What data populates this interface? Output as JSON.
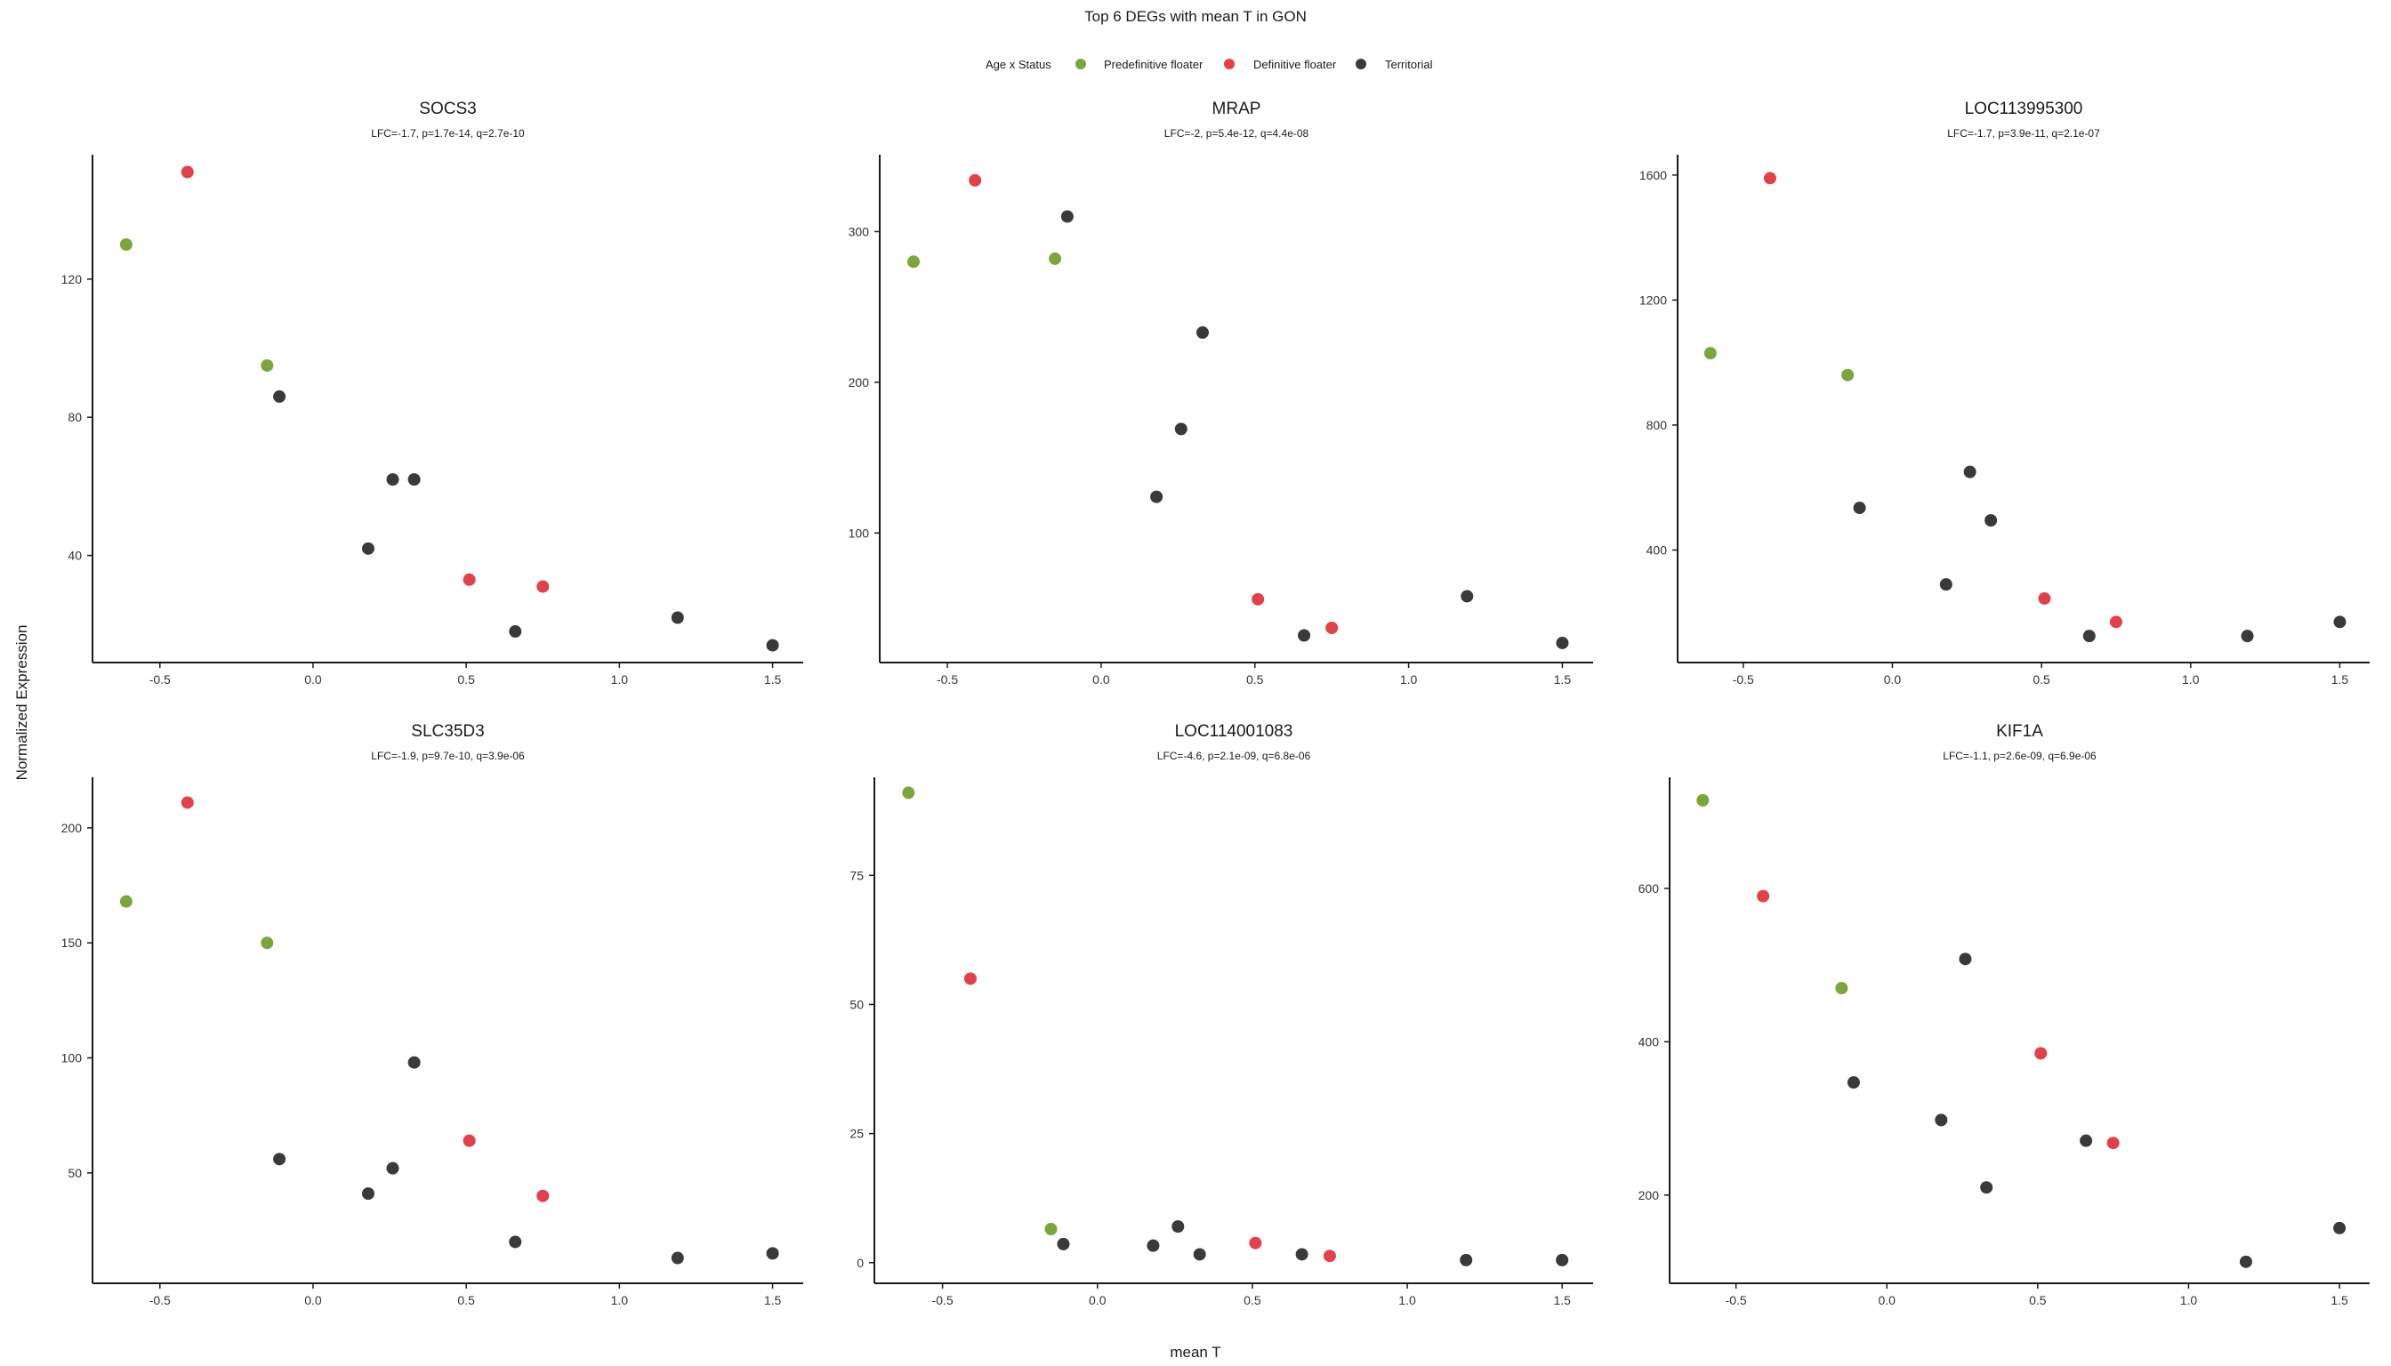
{
  "figure": {
    "title": "Top 6 DEGs with mean T in GON",
    "xlabel": "mean T",
    "ylabel": "Normalized Expression"
  },
  "legend": {
    "title": "Age x Status",
    "position": "top-center",
    "items": [
      {
        "name": "Predefinitive floater",
        "color": "#7CA63B"
      },
      {
        "name": "Definitive floater",
        "color": "#E0414A"
      },
      {
        "name": "Territorial",
        "color": "#3A3A3A"
      }
    ]
  },
  "chart_data": [
    {
      "type": "scatter",
      "title": "SOCS3",
      "subtitle": "LFC=-1.7, p=1.7e-14, q=2.7e-10",
      "xlim": [
        -0.72,
        1.6
      ],
      "ylim": [
        9,
        156
      ],
      "xticks": [
        -0.5,
        0.0,
        0.5,
        1.0,
        1.5
      ],
      "xtick_labels": [
        "-0.5",
        "0.0",
        "0.5",
        "1.0",
        "1.5"
      ],
      "yticks": [
        40,
        80,
        120
      ],
      "ytick_labels": [
        "40",
        "80",
        "120"
      ],
      "points": [
        {
          "x": -0.61,
          "y": 130,
          "status": "Predefinitive floater"
        },
        {
          "x": -0.15,
          "y": 95,
          "status": "Predefinitive floater"
        },
        {
          "x": -0.41,
          "y": 151,
          "status": "Definitive floater"
        },
        {
          "x": 0.51,
          "y": 33,
          "status": "Definitive floater"
        },
        {
          "x": 0.75,
          "y": 31,
          "status": "Definitive floater"
        },
        {
          "x": -0.11,
          "y": 86,
          "status": "Territorial"
        },
        {
          "x": 0.26,
          "y": 62,
          "status": "Territorial"
        },
        {
          "x": 0.33,
          "y": 62,
          "status": "Territorial"
        },
        {
          "x": 0.18,
          "y": 42,
          "status": "Territorial"
        },
        {
          "x": 0.66,
          "y": 18,
          "status": "Territorial"
        },
        {
          "x": 1.19,
          "y": 22,
          "status": "Territorial"
        },
        {
          "x": 1.5,
          "y": 14,
          "status": "Territorial"
        }
      ]
    },
    {
      "type": "scatter",
      "title": "MRAP",
      "subtitle": "LFC=-2, p=5.4e-12, q=4.4e-08",
      "xlim": [
        -0.72,
        1.6
      ],
      "ylim": [
        14,
        351
      ],
      "xticks": [
        -0.5,
        0.0,
        0.5,
        1.0,
        1.5
      ],
      "xtick_labels": [
        "-0.5",
        "0.0",
        "0.5",
        "1.0",
        "1.5"
      ],
      "yticks": [
        100,
        200,
        300
      ],
      "ytick_labels": [
        "100",
        "200",
        "300"
      ],
      "points": [
        {
          "x": -0.61,
          "y": 280,
          "status": "Predefinitive floater"
        },
        {
          "x": -0.15,
          "y": 282,
          "status": "Predefinitive floater"
        },
        {
          "x": -0.41,
          "y": 334,
          "status": "Definitive floater"
        },
        {
          "x": 0.51,
          "y": 56,
          "status": "Definitive floater"
        },
        {
          "x": 0.75,
          "y": 37,
          "status": "Definitive floater"
        },
        {
          "x": -0.11,
          "y": 310,
          "status": "Territorial"
        },
        {
          "x": 0.33,
          "y": 233,
          "status": "Territorial"
        },
        {
          "x": 0.26,
          "y": 169,
          "status": "Territorial"
        },
        {
          "x": 0.18,
          "y": 124,
          "status": "Territorial"
        },
        {
          "x": 0.66,
          "y": 32,
          "status": "Territorial"
        },
        {
          "x": 1.19,
          "y": 58,
          "status": "Territorial"
        },
        {
          "x": 1.5,
          "y": 27,
          "status": "Territorial"
        }
      ]
    },
    {
      "type": "scatter",
      "title": "LOC113995300",
      "subtitle": "LFC=-1.7, p=3.9e-11, q=2.1e-07",
      "xlim": [
        -0.72,
        1.6
      ],
      "ylim": [
        40,
        1665
      ],
      "xticks": [
        -0.5,
        0.0,
        0.5,
        1.0,
        1.5
      ],
      "xtick_labels": [
        "-0.5",
        "0.0",
        "0.5",
        "1.0",
        "1.5"
      ],
      "yticks": [
        400,
        800,
        1200,
        1600
      ],
      "ytick_labels": [
        "400",
        "800",
        "1200",
        "1600"
      ],
      "points": [
        {
          "x": -0.61,
          "y": 1030,
          "status": "Predefinitive floater"
        },
        {
          "x": -0.15,
          "y": 960,
          "status": "Predefinitive floater"
        },
        {
          "x": -0.41,
          "y": 1590,
          "status": "Definitive floater"
        },
        {
          "x": 0.51,
          "y": 245,
          "status": "Definitive floater"
        },
        {
          "x": 0.75,
          "y": 170,
          "status": "Definitive floater"
        },
        {
          "x": 0.26,
          "y": 650,
          "status": "Territorial"
        },
        {
          "x": -0.11,
          "y": 535,
          "status": "Territorial"
        },
        {
          "x": 0.33,
          "y": 495,
          "status": "Territorial"
        },
        {
          "x": 0.18,
          "y": 290,
          "status": "Territorial"
        },
        {
          "x": 0.66,
          "y": 125,
          "status": "Territorial"
        },
        {
          "x": 1.19,
          "y": 125,
          "status": "Territorial"
        },
        {
          "x": 1.5,
          "y": 170,
          "status": "Territorial"
        }
      ]
    },
    {
      "type": "scatter",
      "title": "SLC35D3",
      "subtitle": "LFC=-1.9, p=9.7e-10, q=3.9e-06",
      "xlim": [
        -0.72,
        1.6
      ],
      "ylim": [
        2,
        222
      ],
      "xticks": [
        -0.5,
        0.0,
        0.5,
        1.0,
        1.5
      ],
      "xtick_labels": [
        "-0.5",
        "0.0",
        "0.5",
        "1.0",
        "1.5"
      ],
      "yticks": [
        50,
        100,
        150,
        200
      ],
      "ytick_labels": [
        "50",
        "100",
        "150",
        "200"
      ],
      "points": [
        {
          "x": -0.61,
          "y": 168,
          "status": "Predefinitive floater"
        },
        {
          "x": -0.15,
          "y": 150,
          "status": "Predefinitive floater"
        },
        {
          "x": -0.41,
          "y": 211,
          "status": "Definitive floater"
        },
        {
          "x": 0.51,
          "y": 64,
          "status": "Definitive floater"
        },
        {
          "x": 0.75,
          "y": 40,
          "status": "Definitive floater"
        },
        {
          "x": 0.33,
          "y": 98,
          "status": "Territorial"
        },
        {
          "x": -0.11,
          "y": 56,
          "status": "Territorial"
        },
        {
          "x": 0.26,
          "y": 52,
          "status": "Territorial"
        },
        {
          "x": 0.18,
          "y": 41,
          "status": "Territorial"
        },
        {
          "x": 0.66,
          "y": 20,
          "status": "Territorial"
        },
        {
          "x": 1.19,
          "y": 13,
          "status": "Territorial"
        },
        {
          "x": 1.5,
          "y": 15,
          "status": "Territorial"
        }
      ]
    },
    {
      "type": "scatter",
      "title": "LOC114001083",
      "subtitle": "LFC=-4.6, p=2.1e-09, q=6.8e-06",
      "xlim": [
        -0.72,
        1.6
      ],
      "ylim": [
        -4,
        94
      ],
      "xticks": [
        -0.5,
        0.0,
        0.5,
        1.0,
        1.5
      ],
      "xtick_labels": [
        "-0.5",
        "0.0",
        "0.5",
        "1.0",
        "1.5"
      ],
      "yticks": [
        0,
        25,
        50,
        75
      ],
      "ytick_labels": [
        "0",
        "25",
        "50",
        "75"
      ],
      "points": [
        {
          "x": -0.61,
          "y": 91,
          "status": "Predefinitive floater"
        },
        {
          "x": -0.15,
          "y": 6.5,
          "status": "Predefinitive floater"
        },
        {
          "x": -0.41,
          "y": 55,
          "status": "Definitive floater"
        },
        {
          "x": 0.51,
          "y": 3.8,
          "status": "Definitive floater"
        },
        {
          "x": 0.75,
          "y": 1.3,
          "status": "Definitive floater"
        },
        {
          "x": -0.11,
          "y": 3.6,
          "status": "Territorial"
        },
        {
          "x": 0.26,
          "y": 7.0,
          "status": "Territorial"
        },
        {
          "x": 0.18,
          "y": 3.3,
          "status": "Territorial"
        },
        {
          "x": 0.33,
          "y": 1.6,
          "status": "Territorial"
        },
        {
          "x": 0.66,
          "y": 1.6,
          "status": "Territorial"
        },
        {
          "x": 1.19,
          "y": 0.5,
          "status": "Territorial"
        },
        {
          "x": 1.5,
          "y": 0.5,
          "status": "Territorial"
        }
      ]
    },
    {
      "type": "scatter",
      "title": "KIF1A",
      "subtitle": "LFC=-1.1, p=2.6e-09, q=6.9e-06",
      "xlim": [
        -0.72,
        1.6
      ],
      "ylim": [
        85,
        745
      ],
      "xticks": [
        -0.5,
        0.0,
        0.5,
        1.0,
        1.5
      ],
      "xtick_labels": [
        "-0.5",
        "0.0",
        "0.5",
        "1.0",
        "1.5"
      ],
      "yticks": [
        200,
        400,
        600
      ],
      "ytick_labels": [
        "200",
        "400",
        "600"
      ],
      "points": [
        {
          "x": -0.61,
          "y": 715,
          "status": "Predefinitive floater"
        },
        {
          "x": -0.15,
          "y": 470,
          "status": "Predefinitive floater"
        },
        {
          "x": -0.41,
          "y": 590,
          "status": "Definitive floater"
        },
        {
          "x": 0.51,
          "y": 385,
          "status": "Definitive floater"
        },
        {
          "x": 0.75,
          "y": 268,
          "status": "Definitive floater"
        },
        {
          "x": 0.26,
          "y": 508,
          "status": "Territorial"
        },
        {
          "x": -0.11,
          "y": 347,
          "status": "Territorial"
        },
        {
          "x": 0.18,
          "y": 298,
          "status": "Territorial"
        },
        {
          "x": 0.66,
          "y": 271,
          "status": "Territorial"
        },
        {
          "x": 0.33,
          "y": 210,
          "status": "Territorial"
        },
        {
          "x": 1.19,
          "y": 113,
          "status": "Territorial"
        },
        {
          "x": 1.5,
          "y": 157,
          "status": "Territorial"
        }
      ]
    }
  ]
}
